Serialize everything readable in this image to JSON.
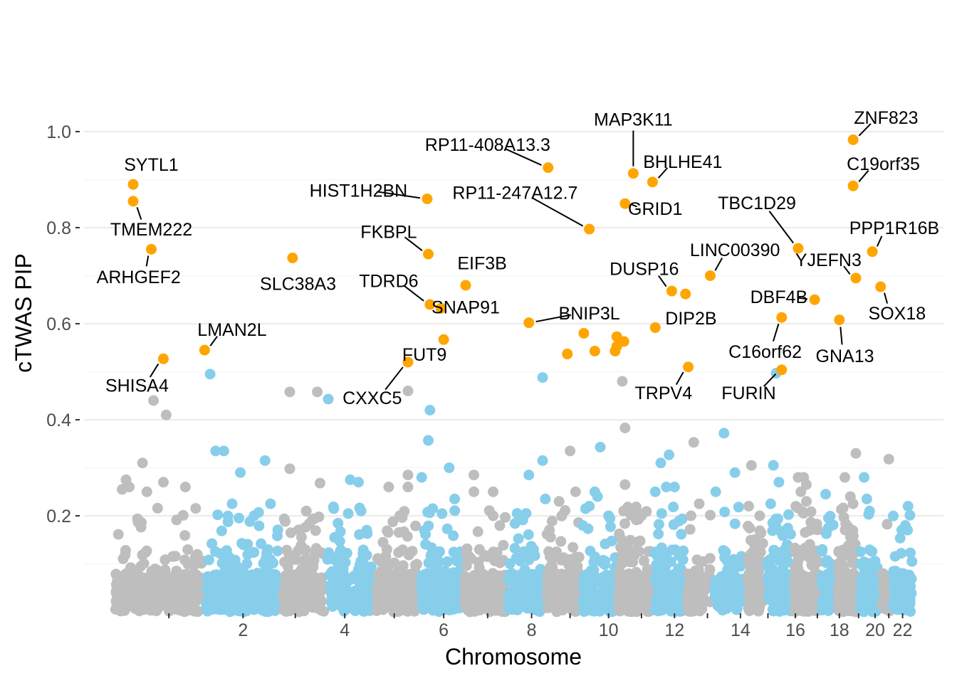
{
  "chart_data": {
    "type": "scatter",
    "title": "",
    "xlabel": "Chromosome",
    "ylabel": "cTWAS PIP",
    "ylim": [
      0,
      1.0
    ],
    "y_ticks": [
      "0.2",
      "0.4",
      "0.6",
      "0.8",
      "1.0"
    ],
    "x_range": [
      0,
      22.8
    ],
    "x_ticks": [
      {
        "label": "",
        "x": 1.0
      },
      {
        "label": "2",
        "x": 2.35
      },
      {
        "label": "",
        "x": 3.3
      },
      {
        "label": "4",
        "x": 4.2
      },
      {
        "label": "",
        "x": 5.1
      },
      {
        "label": "6",
        "x": 6.0
      },
      {
        "label": "",
        "x": 6.8
      },
      {
        "label": "8",
        "x": 7.6
      },
      {
        "label": "",
        "x": 8.3
      },
      {
        "label": "10",
        "x": 9.0
      },
      {
        "label": "",
        "x": 9.6
      },
      {
        "label": "12",
        "x": 10.2
      },
      {
        "label": "",
        "x": 10.8
      },
      {
        "label": "14",
        "x": 11.4
      },
      {
        "label": "",
        "x": 11.9
      },
      {
        "label": "16",
        "x": 12.4
      },
      {
        "label": "",
        "x": 12.8
      },
      {
        "label": "18",
        "x": 13.2
      },
      {
        "label": "",
        "x": 13.55
      },
      {
        "label": "20",
        "x": 13.85
      },
      {
        "label": "",
        "x": 14.1
      },
      {
        "label": "22",
        "x": 14.35
      }
    ],
    "colors": {
      "odd": "#bebebe",
      "even": "#87ceeb",
      "highlight": "#ffa500",
      "text": "#000000"
    },
    "chromosome_spans": [
      {
        "chr": 1,
        "start": 0.0,
        "end": 1.65,
        "n": 300
      },
      {
        "chr": 2,
        "start": 1.65,
        "end": 3.05,
        "n": 270
      },
      {
        "chr": 3,
        "start": 3.05,
        "end": 3.85,
        "n": 180
      },
      {
        "chr": 4,
        "start": 3.85,
        "end": 4.75,
        "n": 150
      },
      {
        "chr": 5,
        "start": 4.75,
        "end": 5.55,
        "n": 170
      },
      {
        "chr": 6,
        "start": 5.55,
        "end": 6.35,
        "n": 180
      },
      {
        "chr": 7,
        "start": 6.35,
        "end": 7.15,
        "n": 170
      },
      {
        "chr": 8,
        "start": 7.15,
        "end": 7.85,
        "n": 130
      },
      {
        "chr": 9,
        "start": 7.85,
        "end": 8.5,
        "n": 130
      },
      {
        "chr": 10,
        "start": 8.5,
        "end": 9.15,
        "n": 140
      },
      {
        "chr": 11,
        "start": 9.15,
        "end": 9.8,
        "n": 180
      },
      {
        "chr": 12,
        "start": 9.8,
        "end": 10.4,
        "n": 170
      },
      {
        "chr": 13,
        "start": 10.4,
        "end": 10.9,
        "n": 70
      },
      {
        "chr": 14,
        "start": 10.9,
        "end": 11.5,
        "n": 110
      },
      {
        "chr": 15,
        "start": 11.5,
        "end": 11.85,
        "n": 110
      },
      {
        "chr": 16,
        "start": 11.85,
        "end": 12.35,
        "n": 120
      },
      {
        "chr": 17,
        "start": 12.35,
        "end": 12.85,
        "n": 180
      },
      {
        "chr": 18,
        "start": 12.85,
        "end": 13.15,
        "n": 60
      },
      {
        "chr": 19,
        "start": 13.15,
        "end": 13.55,
        "n": 190
      },
      {
        "chr": 20,
        "start": 13.55,
        "end": 13.95,
        "n": 90
      },
      {
        "chr": 21,
        "start": 13.95,
        "end": 14.15,
        "n": 35
      },
      {
        "chr": 22,
        "start": 14.15,
        "end": 14.55,
        "n": 80
      }
    ],
    "moderate_points": [
      {
        "x": 0.15,
        "y": 0.255,
        "chr": 1
      },
      {
        "x": 0.22,
        "y": 0.275,
        "chr": 1
      },
      {
        "x": 0.28,
        "y": 0.26,
        "chr": 1
      },
      {
        "x": 0.52,
        "y": 0.31,
        "chr": 1
      },
      {
        "x": 0.6,
        "y": 0.25,
        "chr": 1
      },
      {
        "x": 0.9,
        "y": 0.27,
        "chr": 1
      },
      {
        "x": 0.72,
        "y": 0.44,
        "chr": 1
      },
      {
        "x": 0.95,
        "y": 0.41,
        "chr": 1
      },
      {
        "x": 1.3,
        "y": 0.26,
        "chr": 1
      },
      {
        "x": 1.75,
        "y": 0.495,
        "chr": 2
      },
      {
        "x": 1.85,
        "y": 0.335,
        "chr": 2
      },
      {
        "x": 2.0,
        "y": 0.335,
        "chr": 2
      },
      {
        "x": 2.3,
        "y": 0.29,
        "chr": 2
      },
      {
        "x": 2.75,
        "y": 0.315,
        "chr": 2
      },
      {
        "x": 2.15,
        "y": 0.225,
        "chr": 2
      },
      {
        "x": 2.55,
        "y": 0.2,
        "chr": 2
      },
      {
        "x": 2.85,
        "y": 0.225,
        "chr": 2
      },
      {
        "x": 3.2,
        "y": 0.458,
        "chr": 3
      },
      {
        "x": 3.2,
        "y": 0.298,
        "chr": 3
      },
      {
        "x": 3.7,
        "y": 0.458,
        "chr": 3
      },
      {
        "x": 3.75,
        "y": 0.268,
        "chr": 3
      },
      {
        "x": 3.5,
        "y": 0.21,
        "chr": 3
      },
      {
        "x": 3.9,
        "y": 0.443,
        "chr": 4
      },
      {
        "x": 4.3,
        "y": 0.275,
        "chr": 4
      },
      {
        "x": 4.45,
        "y": 0.27,
        "chr": 4
      },
      {
        "x": 4.0,
        "y": 0.215,
        "chr": 4
      },
      {
        "x": 4.6,
        "y": 0.17,
        "chr": 4
      },
      {
        "x": 5.35,
        "y": 0.46,
        "chr": 5
      },
      {
        "x": 5.0,
        "y": 0.26,
        "chr": 5
      },
      {
        "x": 5.35,
        "y": 0.285,
        "chr": 5
      },
      {
        "x": 5.35,
        "y": 0.26,
        "chr": 5
      },
      {
        "x": 5.2,
        "y": 0.2,
        "chr": 5
      },
      {
        "x": 5.75,
        "y": 0.42,
        "chr": 6
      },
      {
        "x": 5.72,
        "y": 0.357,
        "chr": 6
      },
      {
        "x": 6.1,
        "y": 0.3,
        "chr": 6
      },
      {
        "x": 5.6,
        "y": 0.28,
        "chr": 6
      },
      {
        "x": 6.2,
        "y": 0.235,
        "chr": 6
      },
      {
        "x": 5.8,
        "y": 0.215,
        "chr": 6
      },
      {
        "x": 6.55,
        "y": 0.285,
        "chr": 7
      },
      {
        "x": 6.9,
        "y": 0.25,
        "chr": 7
      },
      {
        "x": 6.55,
        "y": 0.25,
        "chr": 7
      },
      {
        "x": 6.9,
        "y": 0.2,
        "chr": 7
      },
      {
        "x": 7.8,
        "y": 0.488,
        "chr": 8
      },
      {
        "x": 7.8,
        "y": 0.315,
        "chr": 8
      },
      {
        "x": 7.55,
        "y": 0.285,
        "chr": 8
      },
      {
        "x": 7.5,
        "y": 0.205,
        "chr": 8
      },
      {
        "x": 7.85,
        "y": 0.235,
        "chr": 8
      },
      {
        "x": 8.3,
        "y": 0.335,
        "chr": 9
      },
      {
        "x": 8.1,
        "y": 0.23,
        "chr": 9
      },
      {
        "x": 8.4,
        "y": 0.25,
        "chr": 9
      },
      {
        "x": 8.15,
        "y": 0.2,
        "chr": 9
      },
      {
        "x": 8.85,
        "y": 0.343,
        "chr": 10
      },
      {
        "x": 8.75,
        "y": 0.25,
        "chr": 10
      },
      {
        "x": 8.8,
        "y": 0.24,
        "chr": 10
      },
      {
        "x": 8.65,
        "y": 0.22,
        "chr": 10
      },
      {
        "x": 9.0,
        "y": 0.2,
        "chr": 10
      },
      {
        "x": 9.25,
        "y": 0.48,
        "chr": 11
      },
      {
        "x": 9.3,
        "y": 0.383,
        "chr": 11
      },
      {
        "x": 9.3,
        "y": 0.265,
        "chr": 11
      },
      {
        "x": 9.45,
        "y": 0.21,
        "chr": 11
      },
      {
        "x": 9.6,
        "y": 0.2,
        "chr": 11
      },
      {
        "x": 10.1,
        "y": 0.327,
        "chr": 12
      },
      {
        "x": 9.95,
        "y": 0.31,
        "chr": 12
      },
      {
        "x": 10.2,
        "y": 0.26,
        "chr": 12
      },
      {
        "x": 10.05,
        "y": 0.26,
        "chr": 12
      },
      {
        "x": 9.85,
        "y": 0.25,
        "chr": 12
      },
      {
        "x": 10.55,
        "y": 0.353,
        "chr": 13
      },
      {
        "x": 10.65,
        "y": 0.225,
        "chr": 13
      },
      {
        "x": 10.5,
        "y": 0.2,
        "chr": 13
      },
      {
        "x": 11.1,
        "y": 0.372,
        "chr": 14
      },
      {
        "x": 11.3,
        "y": 0.29,
        "chr": 14
      },
      {
        "x": 10.95,
        "y": 0.25,
        "chr": 14
      },
      {
        "x": 11.6,
        "y": 0.305,
        "chr": 15
      },
      {
        "x": 11.55,
        "y": 0.22,
        "chr": 15
      },
      {
        "x": 11.75,
        "y": 0.2,
        "chr": 15
      },
      {
        "x": 12.05,
        "y": 0.497,
        "chr": 16
      },
      {
        "x": 12.0,
        "y": 0.305,
        "chr": 16
      },
      {
        "x": 12.1,
        "y": 0.27,
        "chr": 16
      },
      {
        "x": 11.95,
        "y": 0.225,
        "chr": 16
      },
      {
        "x": 12.55,
        "y": 0.28,
        "chr": 17
      },
      {
        "x": 12.45,
        "y": 0.28,
        "chr": 17
      },
      {
        "x": 12.6,
        "y": 0.265,
        "chr": 17
      },
      {
        "x": 12.5,
        "y": 0.25,
        "chr": 17
      },
      {
        "x": 12.6,
        "y": 0.23,
        "chr": 17
      },
      {
        "x": 12.95,
        "y": 0.245,
        "chr": 18
      },
      {
        "x": 13.0,
        "y": 0.175,
        "chr": 18
      },
      {
        "x": 13.3,
        "y": 0.28,
        "chr": 19
      },
      {
        "x": 13.4,
        "y": 0.24,
        "chr": 19
      },
      {
        "x": 13.45,
        "y": 0.225,
        "chr": 19
      },
      {
        "x": 13.5,
        "y": 0.33,
        "chr": 19
      },
      {
        "x": 13.65,
        "y": 0.28,
        "chr": 20
      },
      {
        "x": 13.7,
        "y": 0.235,
        "chr": 20
      },
      {
        "x": 13.75,
        "y": 0.21,
        "chr": 20
      },
      {
        "x": 14.1,
        "y": 0.318,
        "chr": 21
      },
      {
        "x": 14.45,
        "y": 0.22,
        "chr": 22
      },
      {
        "x": 14.4,
        "y": 0.18,
        "chr": 22
      }
    ],
    "highlighted_genes": [
      {
        "gene": "SYTL1",
        "x": 0.35,
        "y": 0.89,
        "lx": 0.68,
        "ly": 0.932
      },
      {
        "gene": "TMEM222",
        "x": 0.35,
        "y": 0.855,
        "lx": 0.68,
        "ly": 0.797
      },
      {
        "gene": "ARHGEF2",
        "x": 0.68,
        "y": 0.755,
        "lx": 0.45,
        "ly": 0.698
      },
      {
        "gene": "SHISA4",
        "x": 0.9,
        "y": 0.527,
        "lx": 0.42,
        "ly": 0.472
      },
      {
        "gene": "LMAN2L",
        "x": 1.65,
        "y": 0.545,
        "lx": 2.15,
        "ly": 0.588
      },
      {
        "gene": "SLC38A3",
        "x": 3.25,
        "y": 0.737,
        "lx": 3.35,
        "ly": 0.684
      },
      {
        "gene": "CXXC5",
        "x": 5.35,
        "y": 0.52,
        "lx": 4.7,
        "ly": 0.446
      },
      {
        "gene": "HIST1H2BN",
        "x": 5.7,
        "y": 0.86,
        "lx": 4.45,
        "ly": 0.878
      },
      {
        "gene": "FKBPL",
        "x": 5.72,
        "y": 0.745,
        "lx": 5.0,
        "ly": 0.792
      },
      {
        "gene": "TDRD6",
        "x": 5.75,
        "y": 0.64,
        "lx": 5.0,
        "ly": 0.69
      },
      {
        "gene": "SNAP91",
        "x": 5.95,
        "y": 0.632,
        "lx": 6.4,
        "ly": 0.635
      },
      {
        "gene": "FUT9",
        "x": 6.0,
        "y": 0.567,
        "lx": 5.65,
        "ly": 0.536
      },
      {
        "gene": "EIF3B",
        "x": 6.4,
        "y": 0.68,
        "lx": 6.7,
        "ly": 0.727
      },
      {
        "gene": "RP11-408A13.3",
        "x": 7.9,
        "y": 0.925,
        "lx": 6.8,
        "ly": 0.973
      },
      {
        "gene": "RP11-247A12.7",
        "x": 8.65,
        "y": 0.797,
        "lx": 7.3,
        "ly": 0.873
      },
      {
        "gene": "BNIP3L",
        "x": 7.55,
        "y": 0.602,
        "lx": 8.65,
        "ly": 0.622
      },
      {
        "gene": "MAP3K11",
        "x": 9.45,
        "y": 0.913,
        "lx": 9.45,
        "ly": 1.026
      },
      {
        "gene": "BHLHE41",
        "x": 9.8,
        "y": 0.895,
        "lx": 10.35,
        "ly": 0.938
      },
      {
        "gene": "GRID1",
        "x": 9.3,
        "y": 0.85,
        "lx": 9.85,
        "ly": 0.84
      },
      {
        "gene": "DUSP16",
        "x": 10.15,
        "y": 0.668,
        "lx": 9.65,
        "ly": 0.715
      },
      {
        "gene": "DIP2B",
        "x": 10.4,
        "y": 0.662,
        "lx": 10.5,
        "ly": 0.612
      },
      {
        "gene": "LINC00390",
        "x": 10.85,
        "y": 0.7,
        "lx": 11.3,
        "ly": 0.754
      },
      {
        "gene": "TRPV4",
        "x": 10.45,
        "y": 0.51,
        "lx": 10.0,
        "ly": 0.456
      },
      {
        "gene": "TBC1D29",
        "x": 12.45,
        "y": 0.757,
        "lx": 11.7,
        "ly": 0.852
      },
      {
        "gene": "DBF4B",
        "x": 12.75,
        "y": 0.65,
        "lx": 12.1,
        "ly": 0.656
      },
      {
        "gene": "C16orf62",
        "x": 12.15,
        "y": 0.613,
        "lx": 11.85,
        "ly": 0.542
      },
      {
        "gene": "FURIN",
        "x": 12.15,
        "y": 0.504,
        "lx": 11.55,
        "ly": 0.456
      },
      {
        "gene": "GNA13",
        "x": 13.2,
        "y": 0.608,
        "lx": 13.3,
        "ly": 0.533
      },
      {
        "gene": "ZNF823",
        "x": 13.45,
        "y": 0.983,
        "lx": 14.05,
        "ly": 1.03
      },
      {
        "gene": "C19orf35",
        "x": 13.45,
        "y": 0.887,
        "lx": 14.0,
        "ly": 0.933
      },
      {
        "gene": "PPP1R16B",
        "x": 13.8,
        "y": 0.75,
        "lx": 14.2,
        "ly": 0.8
      },
      {
        "gene": "YJEFN3",
        "x": 13.5,
        "y": 0.695,
        "lx": 13.0,
        "ly": 0.733
      },
      {
        "gene": "SOX18",
        "x": 13.95,
        "y": 0.677,
        "lx": 14.25,
        "ly": 0.622
      }
    ],
    "unlabeled_highlights": [
      {
        "x": 8.25,
        "y": 0.537
      },
      {
        "x": 8.55,
        "y": 0.58
      },
      {
        "x": 8.75,
        "y": 0.543
      },
      {
        "x": 9.15,
        "y": 0.573
      },
      {
        "x": 9.15,
        "y": 0.553
      },
      {
        "x": 9.12,
        "y": 0.543
      },
      {
        "x": 9.28,
        "y": 0.563
      },
      {
        "x": 9.85,
        "y": 0.592
      }
    ]
  }
}
